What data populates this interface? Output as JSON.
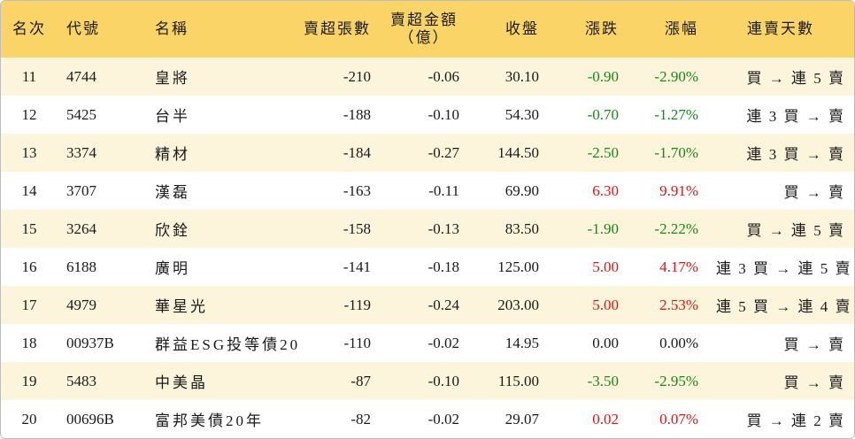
{
  "colors": {
    "header_bg": "#fbd468",
    "odd_row_bg": "#fdf4dc",
    "up": "#e01616",
    "down": "#178a17"
  },
  "header": {
    "rank": "名次",
    "code": "代號",
    "name": "名稱",
    "net_sell_shares": "賣超張數",
    "net_sell_amount_line1": "賣超金額",
    "net_sell_amount_line2": "（億）",
    "close": "收盤",
    "change": "漲跌",
    "change_pct": "漲幅",
    "sell_days": "連賣天數"
  },
  "rows": [
    {
      "rank": "11",
      "code": "4744",
      "name": "皇將",
      "shares": "-210",
      "amount": "-0.06",
      "close": "30.10",
      "change": "-0.90",
      "pct": "-2.90%",
      "trend": "down",
      "days": "買 → 連 5 賣"
    },
    {
      "rank": "12",
      "code": "5425",
      "name": "台半",
      "shares": "-188",
      "amount": "-0.10",
      "close": "54.30",
      "change": "-0.70",
      "pct": "-1.27%",
      "trend": "down",
      "days": "連 3 買 → 賣"
    },
    {
      "rank": "13",
      "code": "3374",
      "name": "精材",
      "shares": "-184",
      "amount": "-0.27",
      "close": "144.50",
      "change": "-2.50",
      "pct": "-1.70%",
      "trend": "down",
      "days": "連 3 買 → 賣"
    },
    {
      "rank": "14",
      "code": "3707",
      "name": "漢磊",
      "shares": "-163",
      "amount": "-0.11",
      "close": "69.90",
      "change": "6.30",
      "pct": "9.91%",
      "trend": "up",
      "days": "買 → 賣"
    },
    {
      "rank": "15",
      "code": "3264",
      "name": "欣銓",
      "shares": "-158",
      "amount": "-0.13",
      "close": "83.50",
      "change": "-1.90",
      "pct": "-2.22%",
      "trend": "down",
      "days": "買 → 連 5 賣"
    },
    {
      "rank": "16",
      "code": "6188",
      "name": "廣明",
      "shares": "-141",
      "amount": "-0.18",
      "close": "125.00",
      "change": "5.00",
      "pct": "4.17%",
      "trend": "up",
      "days": "連 3 買 → 連 5 賣"
    },
    {
      "rank": "17",
      "code": "4979",
      "name": "華星光",
      "shares": "-119",
      "amount": "-0.24",
      "close": "203.00",
      "change": "5.00",
      "pct": "2.53%",
      "trend": "up",
      "days": "連 5 買 → 連 4 賣"
    },
    {
      "rank": "18",
      "code": "00937B",
      "name": "群益ESG投等債20",
      "shares": "-110",
      "amount": "-0.02",
      "close": "14.95",
      "change": "0.00",
      "pct": "0.00%",
      "trend": "flat",
      "days": "買 → 賣"
    },
    {
      "rank": "19",
      "code": "5483",
      "name": "中美晶",
      "shares": "-87",
      "amount": "-0.10",
      "close": "115.00",
      "change": "-3.50",
      "pct": "-2.95%",
      "trend": "down",
      "days": "買 → 賣"
    },
    {
      "rank": "20",
      "code": "00696B",
      "name": "富邦美債20年",
      "shares": "-82",
      "amount": "-0.02",
      "close": "29.07",
      "change": "0.02",
      "pct": "0.07%",
      "trend": "up",
      "days": "買 → 連 2 賣"
    }
  ]
}
